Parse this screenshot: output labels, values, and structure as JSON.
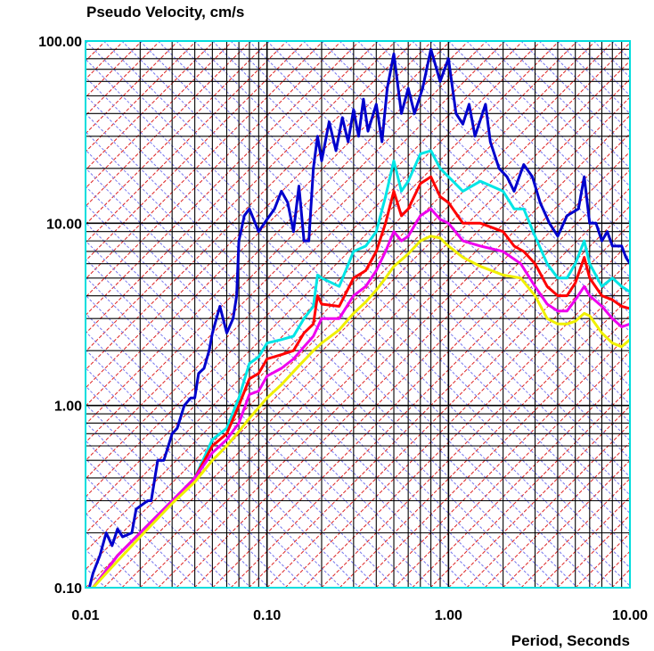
{
  "chart_data": {
    "type": "line",
    "title": "Pseudo Velocity, cm/s",
    "xlabel": "Period, Seconds",
    "ylabel": "",
    "x_scale": "log",
    "y_scale": "log",
    "xlim": [
      0.01,
      10.0
    ],
    "ylim": [
      0.1,
      100.0
    ],
    "x_ticks": [
      "0.01",
      "0.10",
      "1.00",
      "10.00"
    ],
    "y_ticks": [
      "0.10",
      "1.00",
      "10.00",
      "100.00"
    ],
    "grid": true,
    "tripartite_grid": true,
    "series": [
      {
        "color": "#0000cc",
        "points": [
          [
            0.0105,
            0.1
          ],
          [
            0.011,
            0.12
          ],
          [
            0.012,
            0.15
          ],
          [
            0.013,
            0.2
          ],
          [
            0.014,
            0.17
          ],
          [
            0.015,
            0.21
          ],
          [
            0.016,
            0.19
          ],
          [
            0.018,
            0.2
          ],
          [
            0.019,
            0.27
          ],
          [
            0.02,
            0.28
          ],
          [
            0.022,
            0.3
          ],
          [
            0.023,
            0.3
          ],
          [
            0.025,
            0.5
          ],
          [
            0.027,
            0.5
          ],
          [
            0.03,
            0.7
          ],
          [
            0.032,
            0.75
          ],
          [
            0.035,
            1.0
          ],
          [
            0.038,
            1.1
          ],
          [
            0.04,
            1.1
          ],
          [
            0.042,
            1.5
          ],
          [
            0.045,
            1.6
          ],
          [
            0.048,
            2.0
          ],
          [
            0.05,
            2.5
          ],
          [
            0.055,
            3.5
          ],
          [
            0.06,
            2.5
          ],
          [
            0.065,
            3.0
          ],
          [
            0.068,
            4.0
          ],
          [
            0.07,
            8.0
          ],
          [
            0.075,
            11.0
          ],
          [
            0.08,
            12.0
          ],
          [
            0.09,
            9.0
          ],
          [
            0.1,
            10.5
          ],
          [
            0.11,
            12.0
          ],
          [
            0.12,
            15.0
          ],
          [
            0.13,
            13.0
          ],
          [
            0.14,
            9.0
          ],
          [
            0.15,
            16.0
          ],
          [
            0.16,
            8.0
          ],
          [
            0.17,
            8.0
          ],
          [
            0.18,
            20.0
          ],
          [
            0.19,
            30.0
          ],
          [
            0.2,
            22.0
          ],
          [
            0.22,
            36.0
          ],
          [
            0.24,
            25.0
          ],
          [
            0.26,
            38.0
          ],
          [
            0.28,
            28.0
          ],
          [
            0.3,
            42.0
          ],
          [
            0.32,
            30.0
          ],
          [
            0.34,
            48.0
          ],
          [
            0.36,
            32.0
          ],
          [
            0.4,
            45.0
          ],
          [
            0.43,
            28.0
          ],
          [
            0.46,
            55.0
          ],
          [
            0.5,
            85.0
          ],
          [
            0.55,
            40.0
          ],
          [
            0.6,
            55.0
          ],
          [
            0.65,
            40.0
          ],
          [
            0.72,
            55.0
          ],
          [
            0.8,
            90.0
          ],
          [
            0.9,
            60.0
          ],
          [
            1.0,
            80.0
          ],
          [
            1.1,
            40.0
          ],
          [
            1.2,
            35.0
          ],
          [
            1.3,
            45.0
          ],
          [
            1.4,
            30.0
          ],
          [
            1.6,
            45.0
          ],
          [
            1.7,
            28.0
          ],
          [
            1.9,
            20.0
          ],
          [
            2.1,
            18.0
          ],
          [
            2.3,
            15.0
          ],
          [
            2.6,
            21.0
          ],
          [
            2.9,
            18.0
          ],
          [
            3.2,
            13.0
          ],
          [
            3.6,
            10.0
          ],
          [
            4.0,
            8.5
          ],
          [
            4.5,
            11.0
          ],
          [
            5.2,
            12.0
          ],
          [
            5.6,
            18.0
          ],
          [
            6.0,
            10.0
          ],
          [
            6.5,
            10.0
          ],
          [
            7.0,
            8.0
          ],
          [
            7.5,
            9.0
          ],
          [
            8.0,
            7.5
          ],
          [
            9.0,
            7.5
          ],
          [
            9.5,
            6.5
          ],
          [
            10.0,
            6.0
          ]
        ]
      },
      {
        "color": "#00e5e5",
        "points": [
          [
            0.011,
            0.1
          ],
          [
            0.015,
            0.15
          ],
          [
            0.02,
            0.2
          ],
          [
            0.03,
            0.3
          ],
          [
            0.04,
            0.4
          ],
          [
            0.05,
            0.65
          ],
          [
            0.06,
            0.75
          ],
          [
            0.07,
            1.1
          ],
          [
            0.08,
            1.7
          ],
          [
            0.09,
            1.85
          ],
          [
            0.1,
            2.2
          ],
          [
            0.12,
            2.3
          ],
          [
            0.14,
            2.4
          ],
          [
            0.16,
            3.0
          ],
          [
            0.18,
            3.5
          ],
          [
            0.19,
            5.2
          ],
          [
            0.2,
            5.0
          ],
          [
            0.25,
            4.5
          ],
          [
            0.3,
            7.0
          ],
          [
            0.35,
            7.5
          ],
          [
            0.4,
            9.0
          ],
          [
            0.45,
            14.0
          ],
          [
            0.5,
            22.0
          ],
          [
            0.55,
            15.0
          ],
          [
            0.6,
            17.0
          ],
          [
            0.7,
            24.0
          ],
          [
            0.8,
            25.0
          ],
          [
            0.9,
            20.0
          ],
          [
            1.0,
            18.0
          ],
          [
            1.2,
            15.0
          ],
          [
            1.5,
            17.0
          ],
          [
            2.0,
            15.0
          ],
          [
            2.3,
            12.0
          ],
          [
            2.6,
            12.0
          ],
          [
            3.0,
            8.5
          ],
          [
            3.5,
            6.0
          ],
          [
            4.0,
            5.0
          ],
          [
            4.5,
            5.0
          ],
          [
            5.0,
            6.0
          ],
          [
            5.6,
            8.0
          ],
          [
            6.0,
            6.0
          ],
          [
            7.0,
            4.5
          ],
          [
            8.0,
            5.0
          ],
          [
            9.0,
            4.5
          ],
          [
            10.0,
            4.2
          ]
        ]
      },
      {
        "color": "#ff0000",
        "points": [
          [
            0.011,
            0.1
          ],
          [
            0.015,
            0.15
          ],
          [
            0.02,
            0.2
          ],
          [
            0.03,
            0.3
          ],
          [
            0.04,
            0.4
          ],
          [
            0.05,
            0.6
          ],
          [
            0.06,
            0.7
          ],
          [
            0.07,
            1.0
          ],
          [
            0.08,
            1.4
          ],
          [
            0.09,
            1.5
          ],
          [
            0.1,
            1.8
          ],
          [
            0.12,
            1.9
          ],
          [
            0.14,
            2.0
          ],
          [
            0.16,
            2.5
          ],
          [
            0.18,
            2.8
          ],
          [
            0.19,
            4.0
          ],
          [
            0.2,
            3.6
          ],
          [
            0.25,
            3.5
          ],
          [
            0.3,
            5.0
          ],
          [
            0.35,
            5.5
          ],
          [
            0.4,
            7.0
          ],
          [
            0.45,
            10.0
          ],
          [
            0.5,
            15.0
          ],
          [
            0.55,
            11.0
          ],
          [
            0.6,
            12.0
          ],
          [
            0.7,
            16.5
          ],
          [
            0.8,
            18.0
          ],
          [
            0.9,
            14.0
          ],
          [
            1.0,
            13.0
          ],
          [
            1.2,
            10.0
          ],
          [
            1.5,
            10.0
          ],
          [
            2.0,
            9.0
          ],
          [
            2.3,
            7.5
          ],
          [
            2.6,
            7.0
          ],
          [
            3.0,
            6.0
          ],
          [
            3.5,
            4.5
          ],
          [
            4.0,
            4.0
          ],
          [
            4.5,
            4.0
          ],
          [
            5.0,
            4.7
          ],
          [
            5.6,
            6.5
          ],
          [
            6.0,
            5.0
          ],
          [
            7.0,
            4.0
          ],
          [
            8.0,
            3.8
          ],
          [
            9.0,
            3.5
          ],
          [
            10.0,
            3.4
          ]
        ]
      },
      {
        "color": "#ee00ee",
        "points": [
          [
            0.011,
            0.1
          ],
          [
            0.015,
            0.15
          ],
          [
            0.02,
            0.2
          ],
          [
            0.03,
            0.3
          ],
          [
            0.04,
            0.4
          ],
          [
            0.05,
            0.55
          ],
          [
            0.06,
            0.65
          ],
          [
            0.07,
            0.8
          ],
          [
            0.08,
            1.15
          ],
          [
            0.09,
            1.2
          ],
          [
            0.1,
            1.45
          ],
          [
            0.12,
            1.6
          ],
          [
            0.14,
            1.8
          ],
          [
            0.16,
            2.1
          ],
          [
            0.18,
            2.4
          ],
          [
            0.2,
            3.0
          ],
          [
            0.25,
            3.0
          ],
          [
            0.3,
            4.0
          ],
          [
            0.35,
            4.5
          ],
          [
            0.4,
            5.5
          ],
          [
            0.45,
            7.0
          ],
          [
            0.5,
            9.0
          ],
          [
            0.55,
            8.0
          ],
          [
            0.6,
            8.5
          ],
          [
            0.7,
            11.0
          ],
          [
            0.8,
            12.0
          ],
          [
            0.9,
            10.5
          ],
          [
            1.0,
            10.0
          ],
          [
            1.2,
            8.0
          ],
          [
            1.5,
            7.5
          ],
          [
            2.0,
            7.0
          ],
          [
            2.5,
            6.0
          ],
          [
            3.0,
            4.5
          ],
          [
            3.5,
            3.6
          ],
          [
            4.0,
            3.3
          ],
          [
            4.5,
            3.3
          ],
          [
            5.0,
            3.8
          ],
          [
            5.6,
            4.5
          ],
          [
            6.0,
            4.0
          ],
          [
            7.0,
            3.5
          ],
          [
            8.0,
            3.0
          ],
          [
            9.0,
            2.7
          ],
          [
            10.0,
            2.8
          ]
        ]
      },
      {
        "color": "#f0f000",
        "points": [
          [
            0.011,
            0.1
          ],
          [
            0.015,
            0.14
          ],
          [
            0.02,
            0.19
          ],
          [
            0.03,
            0.29
          ],
          [
            0.04,
            0.38
          ],
          [
            0.05,
            0.5
          ],
          [
            0.06,
            0.6
          ],
          [
            0.07,
            0.72
          ],
          [
            0.08,
            0.85
          ],
          [
            0.1,
            1.1
          ],
          [
            0.12,
            1.3
          ],
          [
            0.15,
            1.65
          ],
          [
            0.18,
            2.0
          ],
          [
            0.2,
            2.2
          ],
          [
            0.25,
            2.6
          ],
          [
            0.3,
            3.2
          ],
          [
            0.35,
            3.7
          ],
          [
            0.4,
            4.3
          ],
          [
            0.45,
            5.0
          ],
          [
            0.5,
            5.8
          ],
          [
            0.6,
            6.8
          ],
          [
            0.7,
            8.0
          ],
          [
            0.8,
            8.5
          ],
          [
            0.9,
            8.3
          ],
          [
            1.0,
            7.5
          ],
          [
            1.2,
            6.5
          ],
          [
            1.5,
            5.8
          ],
          [
            2.0,
            5.2
          ],
          [
            2.5,
            5.0
          ],
          [
            3.0,
            4.0
          ],
          [
            3.5,
            3.0
          ],
          [
            4.0,
            2.8
          ],
          [
            4.5,
            2.8
          ],
          [
            5.0,
            2.9
          ],
          [
            5.6,
            3.2
          ],
          [
            6.0,
            3.1
          ],
          [
            7.0,
            2.5
          ],
          [
            8.0,
            2.2
          ],
          [
            9.0,
            2.1
          ],
          [
            10.0,
            2.3
          ]
        ]
      }
    ]
  }
}
